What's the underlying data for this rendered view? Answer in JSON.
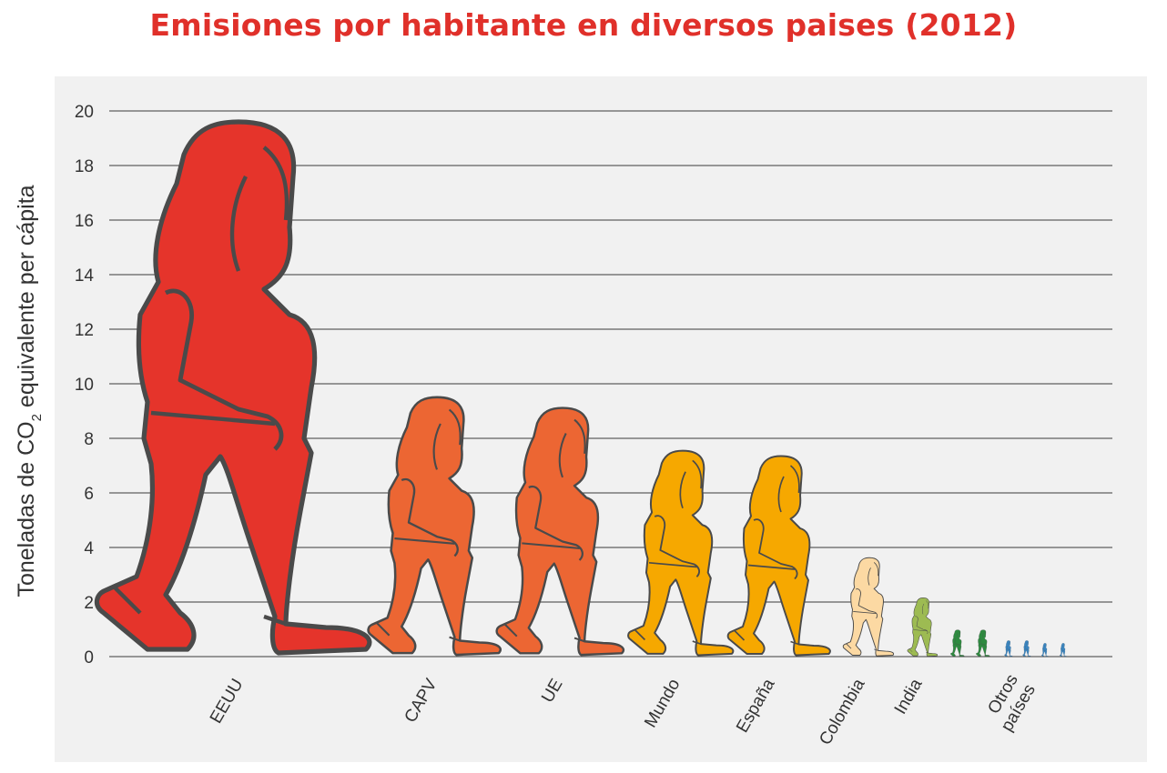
{
  "title": "Emisiones por habitante en diversos paises (2012)",
  "chart_data": {
    "type": "bar",
    "style": "pictogram-walking-figures",
    "title": "Emisiones por habitante en diversos paises (2012)",
    "ylabel_parts": [
      "Toneladas de CO",
      "2",
      " equivalente per cápita"
    ],
    "ylim": [
      0,
      20
    ],
    "yticks": [
      0,
      2,
      4,
      6,
      8,
      10,
      12,
      14,
      16,
      18,
      20
    ],
    "grid": true,
    "categories": [
      "EEUU",
      "CAPV",
      "UE",
      "Mundo",
      "España",
      "Colombia",
      "India",
      "Otros países",
      "Otros países",
      "Otros países",
      "Otros países",
      "Otros países",
      "Otros países"
    ],
    "values": [
      20.0,
      9.7,
      9.3,
      7.7,
      7.5,
      3.7,
      2.2,
      1.0,
      1.0,
      0.6,
      0.6,
      0.5,
      0.5
    ],
    "colors": [
      "#e5342b",
      "#ec6633",
      "#ec6633",
      "#f6a800",
      "#f6a800",
      "#fcd9a3",
      "#9dbb52",
      "#2e8b40",
      "#2e8b40",
      "#3a85c0",
      "#3a85c0",
      "#3a85c0",
      "#3a85c0"
    ],
    "x_labels": [
      {
        "text": [
          "EEUU"
        ]
      },
      {
        "text": [
          "CAPV"
        ]
      },
      {
        "text": [
          "UE"
        ]
      },
      {
        "text": [
          "Mundo"
        ]
      },
      {
        "text": [
          "España"
        ]
      },
      {
        "text": [
          "Colombia"
        ]
      },
      {
        "text": [
          "India"
        ]
      },
      {
        "text": [
          "Otros",
          "países"
        ]
      }
    ]
  }
}
